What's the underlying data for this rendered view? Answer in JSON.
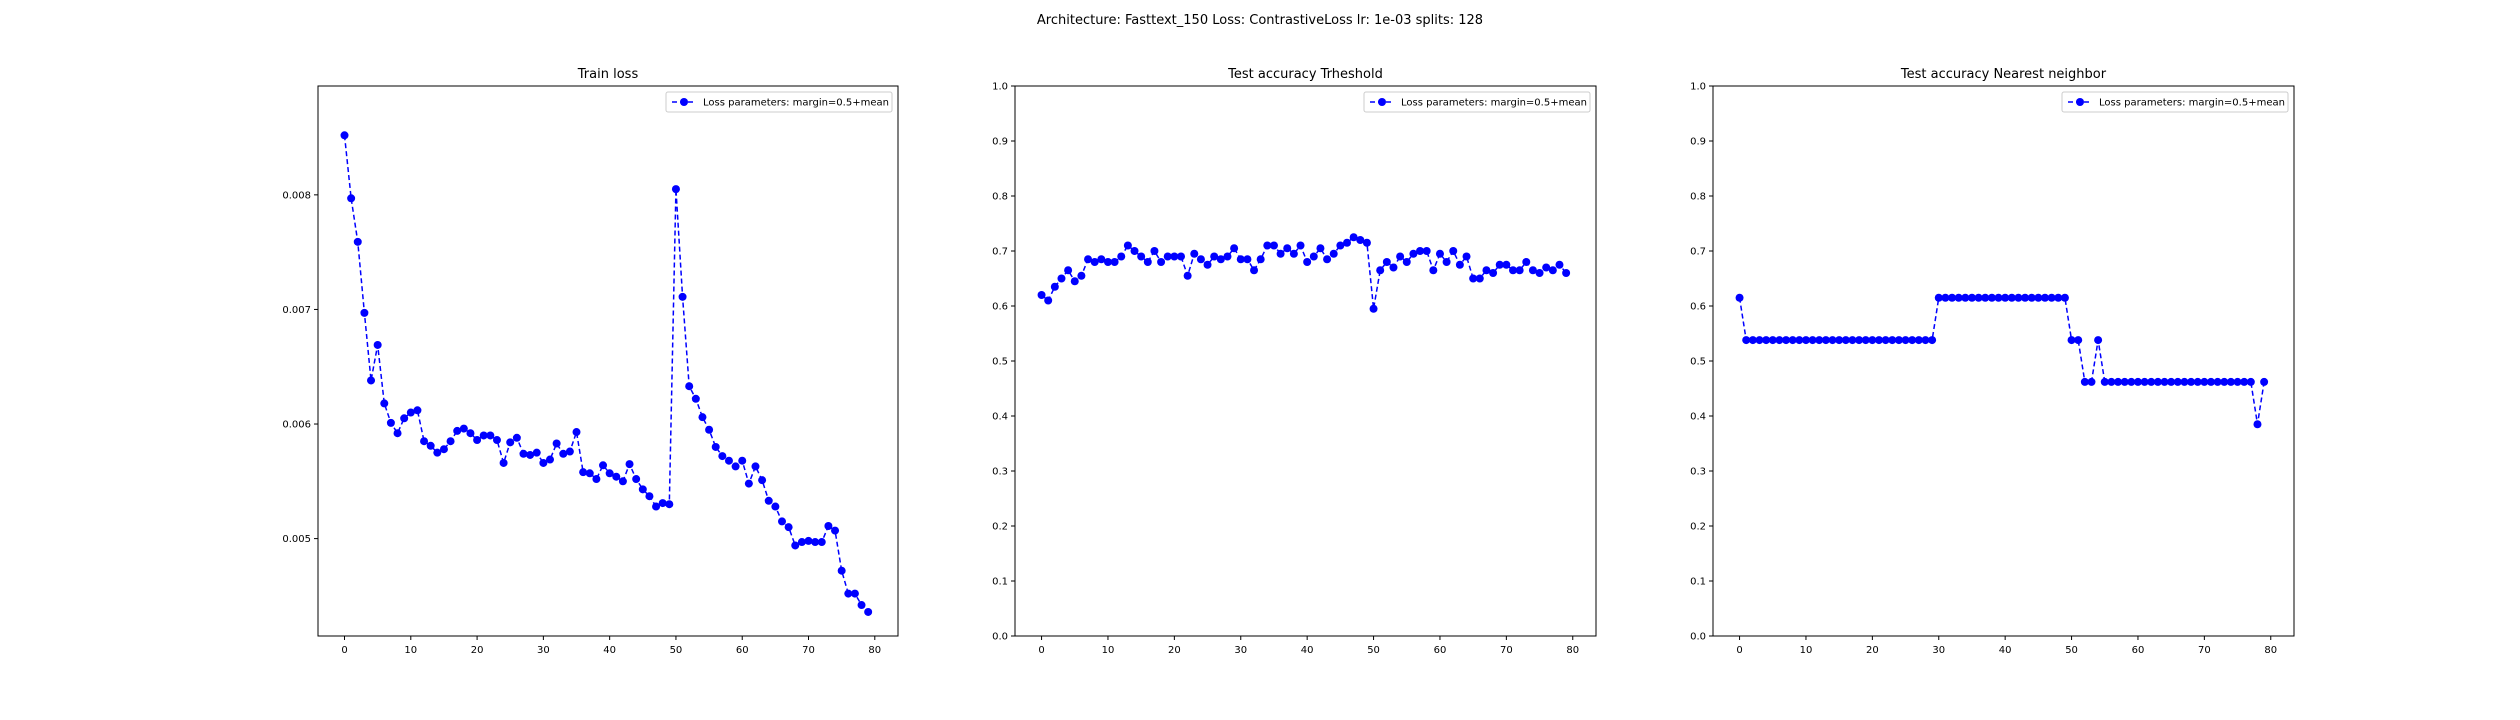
{
  "figure": {
    "suptitle": "Architecture: Fasttext_150 Loss: ContrastiveLoss lr: 1e-03 splits: 128"
  },
  "colors": {
    "series": "#0000ff",
    "axis": "#000000",
    "background": "#ffffff"
  },
  "chart_data": [
    {
      "type": "line",
      "title": "Train loss",
      "xlabel": "",
      "ylabel": "",
      "xlim": [
        -4,
        83.5
      ],
      "ylim": [
        0.00415,
        0.00895
      ],
      "xticks": [
        0,
        10,
        20,
        30,
        40,
        50,
        60,
        70,
        80
      ],
      "yticks": [
        0.005,
        0.006,
        0.007,
        0.008
      ],
      "ytick_labels": [
        "0.005",
        "0.006",
        "0.007",
        "0.008"
      ],
      "grid": false,
      "legend_position": "top-right",
      "series": [
        {
          "name": "Loss parameters: margin=0.5+mean",
          "style": "dashed-line-circle-markers",
          "values": [
            0.00852,
            0.00797,
            0.00759,
            0.00697,
            0.00638,
            0.00669,
            0.00618,
            0.00601,
            0.00592,
            0.00605,
            0.0061,
            0.00612,
            0.00585,
            0.00581,
            0.00575,
            0.00578,
            0.00585,
            0.00594,
            0.00596,
            0.00592,
            0.00586,
            0.0059,
            0.0059,
            0.00586,
            0.00566,
            0.00584,
            0.00588,
            0.00574,
            0.00573,
            0.00575,
            0.00566,
            0.00569,
            0.00583,
            0.00574,
            0.00576,
            0.00593,
            0.00558,
            0.00557,
            0.00552,
            0.00564,
            0.00557,
            0.00554,
            0.0055,
            0.00565,
            0.00552,
            0.00543,
            0.00537,
            0.00528,
            0.00531,
            0.0053,
            0.00805,
            0.00711,
            0.00633,
            0.00622,
            0.00606,
            0.00595,
            0.0058,
            0.00572,
            0.00568,
            0.00563,
            0.00568,
            0.00548,
            0.00563,
            0.00551,
            0.00533,
            0.00528,
            0.00515,
            0.0051,
            0.00494,
            0.00497,
            0.00498,
            0.00497,
            0.00497,
            0.00511,
            0.00507,
            0.00472,
            0.00452,
            0.00452,
            0.00442,
            0.00436
          ]
        }
      ]
    },
    {
      "type": "line",
      "title": "Test accuracy Trheshold",
      "xlabel": "",
      "ylabel": "",
      "xlim": [
        -4,
        83.5
      ],
      "ylim": [
        0.0,
        1.0
      ],
      "xticks": [
        0,
        10,
        20,
        30,
        40,
        50,
        60,
        70,
        80
      ],
      "yticks": [
        0.0,
        0.1,
        0.2,
        0.3,
        0.4,
        0.5,
        0.6,
        0.7,
        0.8,
        0.9,
        1.0
      ],
      "ytick_labels": [
        "0.0",
        "0.1",
        "0.2",
        "0.3",
        "0.4",
        "0.5",
        "0.6",
        "0.7",
        "0.8",
        "0.9",
        "1.0"
      ],
      "grid": false,
      "legend_position": "top-right",
      "series": [
        {
          "name": "Loss parameters: margin=0.5+mean",
          "style": "dashed-line-circle-markers",
          "values": [
            0.62,
            0.61,
            0.635,
            0.65,
            0.665,
            0.645,
            0.655,
            0.685,
            0.68,
            0.685,
            0.68,
            0.68,
            0.69,
            0.71,
            0.7,
            0.69,
            0.68,
            0.7,
            0.68,
            0.69,
            0.69,
            0.69,
            0.655,
            0.695,
            0.685,
            0.675,
            0.69,
            0.685,
            0.69,
            0.705,
            0.685,
            0.685,
            0.665,
            0.685,
            0.71,
            0.71,
            0.695,
            0.705,
            0.695,
            0.71,
            0.68,
            0.69,
            0.705,
            0.685,
            0.695,
            0.71,
            0.715,
            0.725,
            0.72,
            0.715,
            0.595,
            0.665,
            0.68,
            0.67,
            0.69,
            0.68,
            0.695,
            0.7,
            0.7,
            0.665,
            0.695,
            0.68,
            0.7,
            0.675,
            0.69,
            0.65,
            0.65,
            0.665,
            0.66,
            0.675,
            0.675,
            0.665,
            0.665,
            0.68,
            0.665,
            0.66,
            0.67,
            0.665,
            0.675,
            0.66
          ]
        }
      ]
    },
    {
      "type": "line",
      "title": "Test accuracy Nearest neighbor",
      "xlabel": "",
      "ylabel": "",
      "xlim": [
        -4,
        83.5
      ],
      "ylim": [
        0.0,
        1.0
      ],
      "xticks": [
        0,
        10,
        20,
        30,
        40,
        50,
        60,
        70,
        80
      ],
      "yticks": [
        0.0,
        0.1,
        0.2,
        0.3,
        0.4,
        0.5,
        0.6,
        0.7,
        0.8,
        0.9,
        1.0
      ],
      "ytick_labels": [
        "0.0",
        "0.1",
        "0.2",
        "0.3",
        "0.4",
        "0.5",
        "0.6",
        "0.7",
        "0.8",
        "0.9",
        "1.0"
      ],
      "grid": false,
      "legend_position": "top-right",
      "series": [
        {
          "name": "Loss parameters: margin=0.5+mean",
          "style": "dashed-line-circle-markers",
          "values": [
            0.615,
            0.538,
            0.538,
            0.538,
            0.538,
            0.538,
            0.538,
            0.538,
            0.538,
            0.538,
            0.538,
            0.538,
            0.538,
            0.538,
            0.538,
            0.538,
            0.538,
            0.538,
            0.538,
            0.538,
            0.538,
            0.538,
            0.538,
            0.538,
            0.538,
            0.538,
            0.538,
            0.538,
            0.538,
            0.538,
            0.615,
            0.615,
            0.615,
            0.615,
            0.615,
            0.615,
            0.615,
            0.615,
            0.615,
            0.615,
            0.615,
            0.615,
            0.615,
            0.615,
            0.615,
            0.615,
            0.615,
            0.615,
            0.615,
            0.615,
            0.538,
            0.538,
            0.462,
            0.462,
            0.538,
            0.462,
            0.462,
            0.462,
            0.462,
            0.462,
            0.462,
            0.462,
            0.462,
            0.462,
            0.462,
            0.462,
            0.462,
            0.462,
            0.462,
            0.462,
            0.462,
            0.462,
            0.462,
            0.462,
            0.462,
            0.462,
            0.462,
            0.462,
            0.385,
            0.462
          ]
        }
      ]
    }
  ]
}
